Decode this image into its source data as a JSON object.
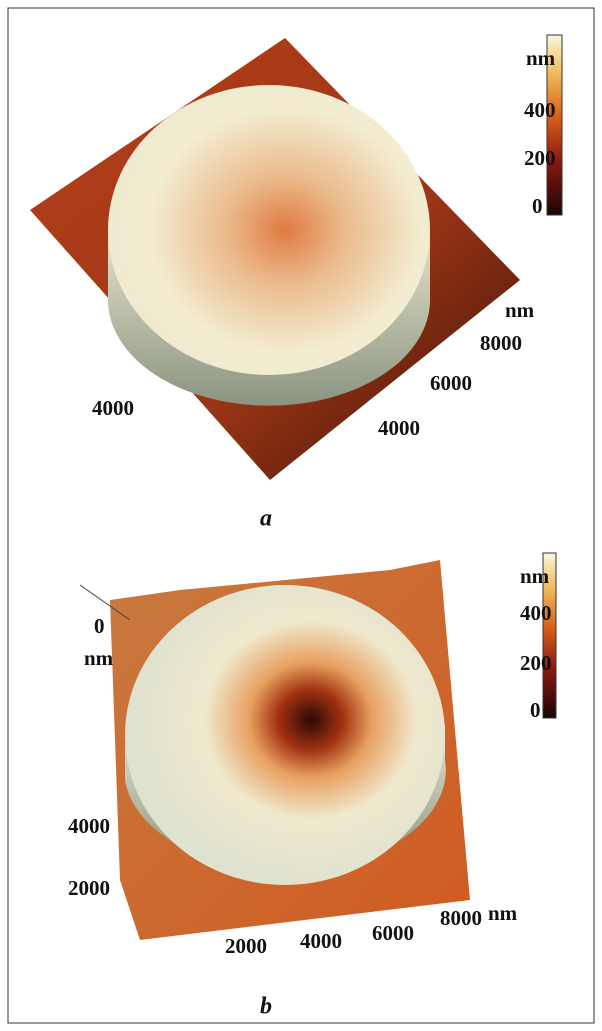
{
  "figure": {
    "panels": [
      {
        "caption": "a",
        "colorbar": [
          "nm",
          "400",
          "200",
          "0"
        ],
        "axis_labels": [
          "nm",
          "8000",
          "6000",
          "4000",
          "4000"
        ]
      },
      {
        "caption": "b",
        "colorbar": [
          "nm",
          "400",
          "200",
          "0"
        ],
        "axis_labels": [
          "0",
          "nm",
          "4000",
          "2000",
          "2000",
          "4000",
          "6000",
          "8000",
          "nm"
        ]
      }
    ]
  }
}
